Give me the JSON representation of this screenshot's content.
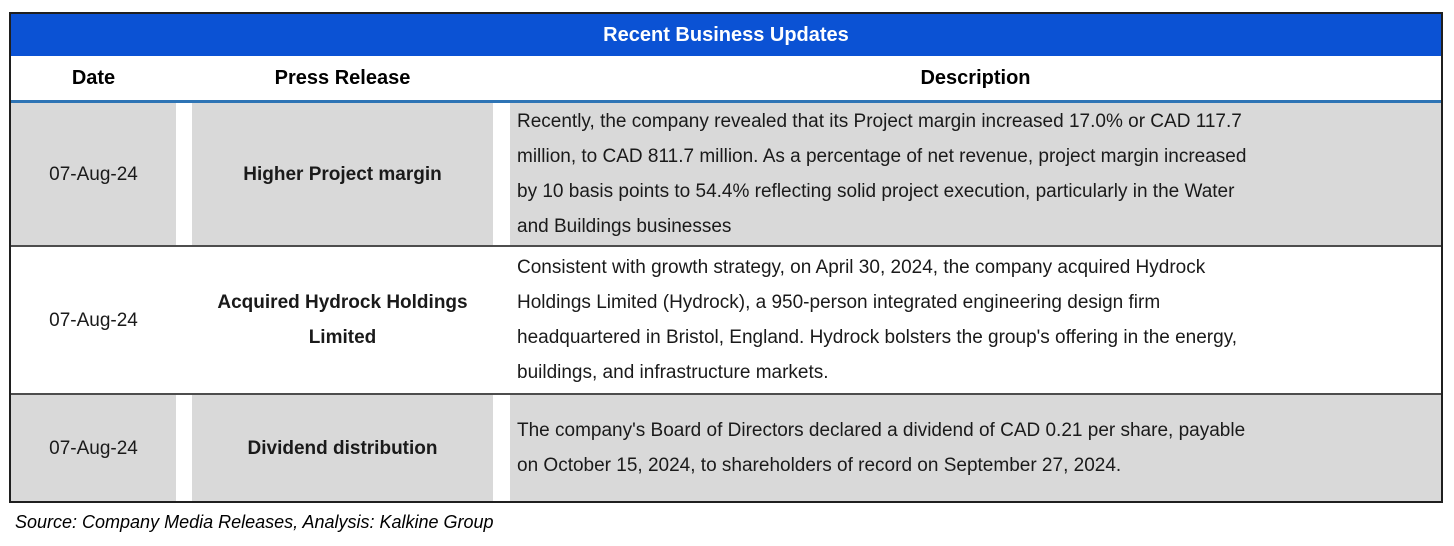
{
  "title": "Recent Business Updates",
  "columns": [
    "Date",
    "Press Release",
    "Description"
  ],
  "rows": [
    {
      "date": "07-Aug-24",
      "press_release": "Higher Project margin",
      "description": "Recently, the company revealed that its Project margin increased 17.0% or CAD 117.7\nmillion, to CAD 811.7 million. As a percentage of net revenue, project margin increased\nby 10 basis points to 54.4% reflecting solid project execution, particularly in the Water\nand Buildings businesses"
    },
    {
      "date": "07-Aug-24",
      "press_release": "Acquired Hydrock Holdings\nLimited",
      "description": "Consistent with growth strategy, on April 30, 2024, the company acquired Hydrock\nHoldings Limited (Hydrock), a 950-person integrated engineering design firm\nheadquartered in Bristol, England. Hydrock bolsters the group's offering in the energy,\nbuildings, and infrastructure markets."
    },
    {
      "date": "07-Aug-24",
      "press_release": "Dividend distribution",
      "description": "The company's  Board of Directors declared a dividend of CAD 0.21 per share, payable\non October 15, 2024, to shareholders of record on September 27, 2024."
    }
  ],
  "source_note": "Source: Company Media Releases, Analysis: Kalkine Group",
  "colors": {
    "title_bar": "#0b52d4",
    "header_underline": "#2e74b5",
    "row_shade": "#d9d9d9",
    "row_separator": "#4d4d4d",
    "outer_border": "#1f1f1f",
    "title_text": "#ffffff",
    "body_text": "#1a1a1a"
  }
}
